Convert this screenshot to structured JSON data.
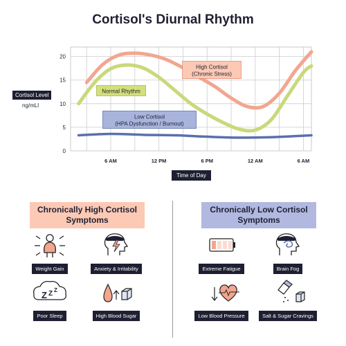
{
  "page": {
    "title": "Cortisol's Diurnal Rhythm"
  },
  "chart_data": {
    "type": "line",
    "ylabel": "Cortisol Level",
    "yunit": "ng/mLl",
    "xlabel": "Time of Day",
    "x_ticks": [
      "6 AM",
      "12 PM",
      "6 PM",
      "12 AM",
      "6 AM"
    ],
    "y_ticks": [
      0,
      5,
      10,
      15,
      20
    ],
    "ylim": [
      0,
      22
    ],
    "x_hours": [
      6,
      12,
      18,
      24,
      30
    ],
    "xlim": [
      1,
      31
    ],
    "grid": true,
    "series": [
      {
        "name": "High Cortisol\n(Chronic Stress)",
        "color": "#f2a68f",
        "x": [
          3,
          5,
          7,
          9,
          11,
          13,
          15,
          17,
          19,
          21,
          23,
          25,
          27,
          29,
          31
        ],
        "y": [
          14.5,
          18.3,
          20.3,
          20.7,
          20.3,
          19.3,
          17.6,
          15.6,
          13.6,
          11.2,
          9.4,
          9.4,
          12.2,
          17.0,
          21.0
        ]
      },
      {
        "name": "Normal Rhythm",
        "color": "#c8d97a",
        "x": [
          2,
          4,
          6,
          8,
          10,
          12,
          14,
          16,
          18,
          20,
          22,
          24,
          26,
          28,
          30,
          31
        ],
        "y": [
          10.0,
          14.5,
          17.4,
          18.2,
          17.6,
          15.6,
          12.8,
          10.0,
          7.8,
          6.0,
          4.6,
          4.4,
          6.6,
          11.6,
          16.6,
          18.0
        ]
      },
      {
        "name": "Low Cortisol\n(HPA Dysfunction / Burnout)",
        "color": "#5a6fae",
        "x": [
          2,
          6,
          10,
          14,
          18,
          22,
          26,
          31
        ],
        "y": [
          3.3,
          3.6,
          3.4,
          3.3,
          3.0,
          2.8,
          2.9,
          3.3
        ]
      }
    ]
  },
  "sections": {
    "high": {
      "title": "Chronically High Cortisol Symptoms",
      "symptoms": [
        "Weight Gain",
        "Anxiety & Irritability",
        "Poor Sleep",
        "High Blood Sugar"
      ]
    },
    "low": {
      "title": "Chronically Low Cortisol Symptoms",
      "symptoms": [
        "Extreme Fatigue",
        "Brain Fog",
        "Low Blood Pressure",
        "Salt & Sugar Cravings"
      ]
    }
  },
  "icons": [
    "person-arrows-icon",
    "head-lightning-icon",
    "zzz-cloud-icon",
    "drop-cube-icon",
    "low-battery-icon",
    "head-swirl-icon",
    "heart-arrow-icon",
    "salt-shaker-icon"
  ]
}
